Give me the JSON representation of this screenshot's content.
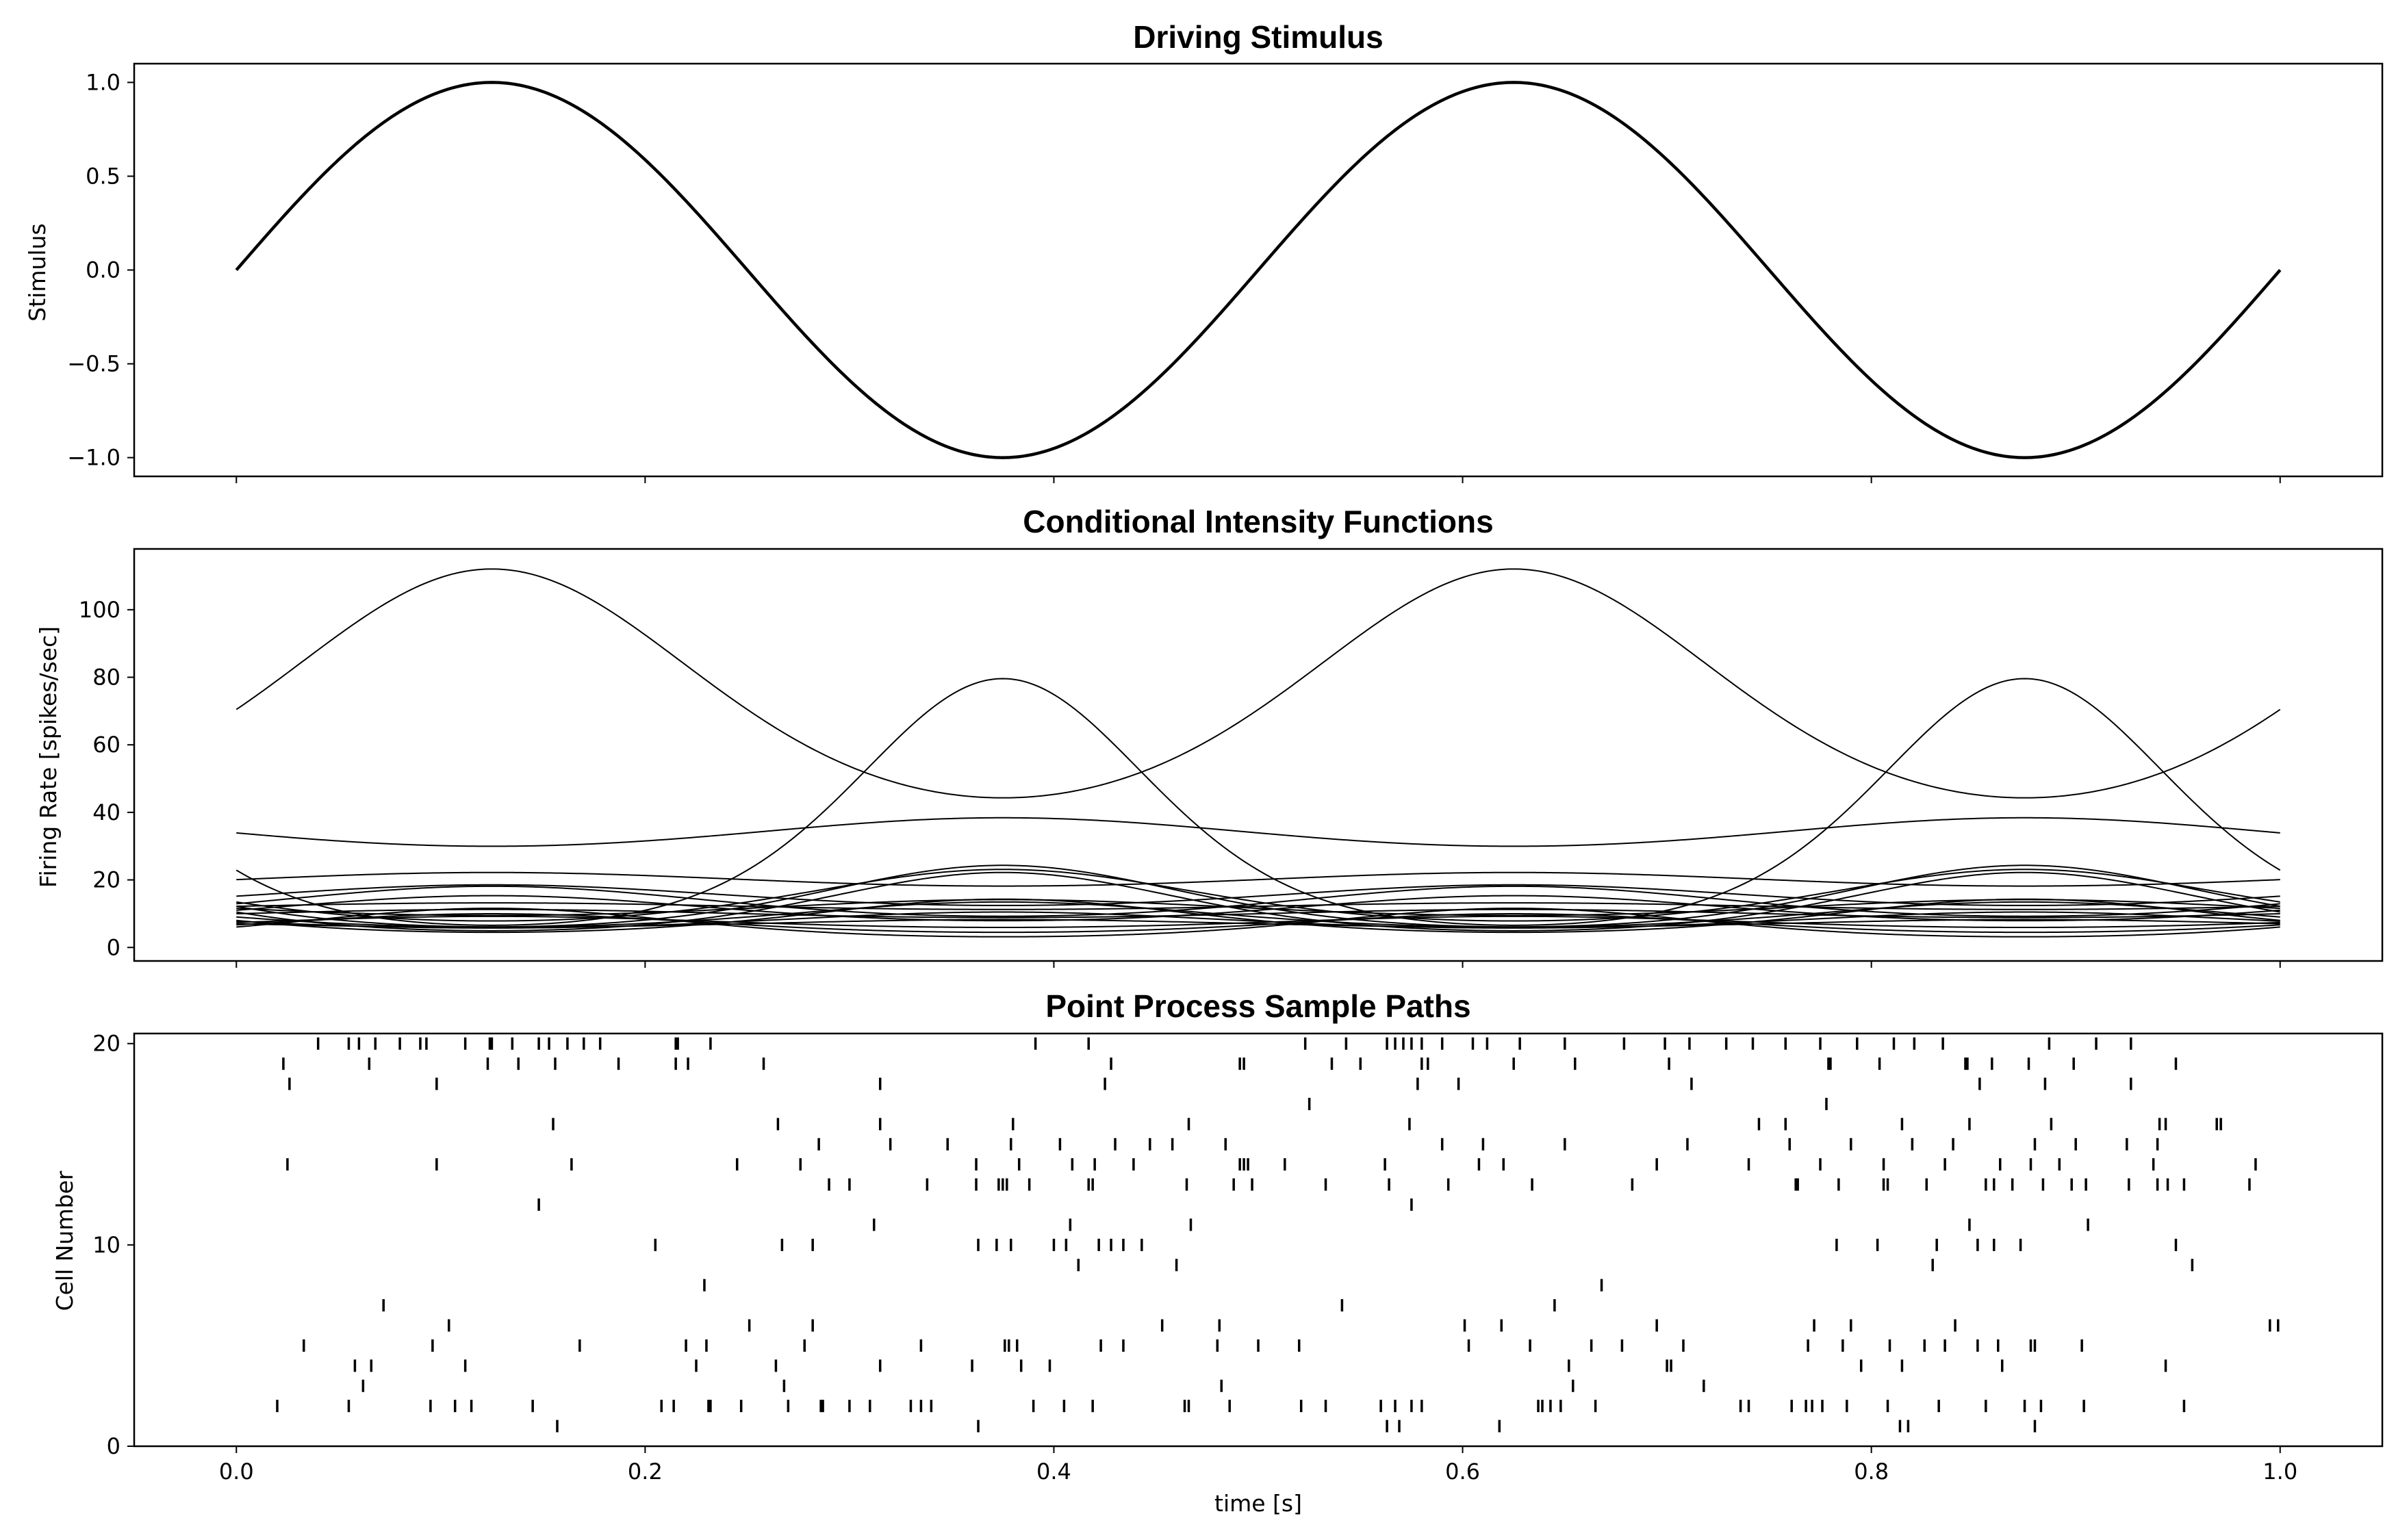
{
  "chart_data": [
    {
      "type": "line",
      "title": "Driving Stimulus",
      "xlabel": "",
      "ylabel": "Stimulus",
      "xlim": [
        -0.05,
        1.05
      ],
      "ylim": [
        -1.1,
        1.1
      ],
      "xticks": [
        0.0,
        0.2,
        0.4,
        0.6,
        0.8,
        1.0
      ],
      "yticks": [
        -1.0,
        -0.5,
        0.0,
        0.5,
        1.0
      ],
      "ytick_labels": [
        "−1.0",
        "−0.5",
        "0.0",
        "0.5",
        "1.0"
      ],
      "grid": false,
      "color": "#000000",
      "series": [
        {
          "function": "sin(2*pi*2*t)",
          "t_range": [
            0,
            1
          ],
          "amplitude": 1.0,
          "frequency_hz": 2
        }
      ]
    },
    {
      "type": "line",
      "title": "Conditional Intensity Functions",
      "xlabel": "",
      "ylabel": "Firing Rate [spikes/sec]",
      "xlim": [
        -0.05,
        1.05
      ],
      "ylim": [
        -4,
        118
      ],
      "xticks": [
        0.0,
        0.2,
        0.4,
        0.6,
        0.8,
        1.0
      ],
      "yticks": [
        0,
        20,
        40,
        60,
        80,
        100
      ],
      "ytick_labels": [
        "0",
        "20",
        "40",
        "60",
        "80",
        "100"
      ],
      "grid": false,
      "color": "#000000",
      "model": "rate = exp(base + gain * sin(2*pi*2*t))",
      "series": [
        {
          "base": 4.255,
          "gain": 0.464
        },
        {
          "base": 3.13,
          "gain": -1.247
        },
        {
          "base": 3.524,
          "gain": -0.124
        },
        {
          "base": 2.5,
          "gain": -0.691
        },
        {
          "base": 2.56,
          "gain": 0.337
        },
        {
          "base": 2.6,
          "gain": -0.54
        },
        {
          "base": 2.35,
          "gain": -0.75
        },
        {
          "base": 2.72,
          "gain": 0.2
        },
        {
          "base": 2.4,
          "gain": 0.33
        },
        {
          "base": 2.2,
          "gain": -0.4
        },
        {
          "base": 2.5,
          "gain": 0.08
        },
        {
          "base": 2.08,
          "gain": -0.58
        },
        {
          "base": 1.9,
          "gain": 0.4
        },
        {
          "base": 2.3,
          "gain": 0.12
        },
        {
          "base": 2.05,
          "gain": -0.3
        },
        {
          "base": 1.8,
          "gain": 0.65
        },
        {
          "base": 2.45,
          "gain": -0.2
        },
        {
          "base": 2.0,
          "gain": 0.22
        },
        {
          "base": 1.95,
          "gain": -0.16
        },
        {
          "base": 3.0,
          "gain": 0.1
        }
      ]
    },
    {
      "type": "scatter",
      "title": "Point Process Sample Paths",
      "xlabel": "time [s]",
      "ylabel": "Cell Number",
      "xlim": [
        -0.05,
        1.05
      ],
      "ylim": [
        0,
        20.5
      ],
      "xticks": [
        0.0,
        0.2,
        0.4,
        0.6,
        0.8,
        1.0
      ],
      "xtick_labels": [
        "0.0",
        "0.2",
        "0.4",
        "0.6",
        "0.8",
        "1.0"
      ],
      "yticks": [
        0,
        10,
        20
      ],
      "ytick_labels": [
        "0",
        "10",
        "20"
      ],
      "grid": false,
      "marker": "|",
      "color": "#000000",
      "spikes": [
        {
          "cell": 1,
          "t": [
            0.157,
            0.363,
            0.563,
            0.569,
            0.618,
            0.814,
            0.818,
            0.88
          ]
        },
        {
          "cell": 2,
          "t": [
            0.02,
            0.055,
            0.095,
            0.107,
            0.115,
            0.145,
            0.208,
            0.214,
            0.231,
            0.232,
            0.247,
            0.27,
            0.286,
            0.287,
            0.3,
            0.31,
            0.33,
            0.335,
            0.34,
            0.39,
            0.405,
            0.419,
            0.464,
            0.466,
            0.486,
            0.521,
            0.533,
            0.56,
            0.567,
            0.575,
            0.58,
            0.637,
            0.639,
            0.643,
            0.648,
            0.665,
            0.736,
            0.74,
            0.761,
            0.768,
            0.771,
            0.776,
            0.788,
            0.808,
            0.833,
            0.856,
            0.875,
            0.883,
            0.904,
            0.953
          ]
        },
        {
          "cell": 3,
          "t": [
            0.062,
            0.268,
            0.482,
            0.654,
            0.718
          ]
        },
        {
          "cell": 4,
          "t": [
            0.058,
            0.066,
            0.112,
            0.225,
            0.264,
            0.315,
            0.36,
            0.384,
            0.398,
            0.652,
            0.7,
            0.702,
            0.795,
            0.815,
            0.864,
            0.944
          ]
        },
        {
          "cell": 5,
          "t": [
            0.033,
            0.096,
            0.168,
            0.22,
            0.23,
            0.278,
            0.335,
            0.376,
            0.378,
            0.382,
            0.423,
            0.434,
            0.48,
            0.5,
            0.52,
            0.603,
            0.633,
            0.663,
            0.678,
            0.708,
            0.769,
            0.786,
            0.809,
            0.826,
            0.836,
            0.852,
            0.862,
            0.878,
            0.88,
            0.903
          ]
        },
        {
          "cell": 6,
          "t": [
            0.104,
            0.251,
            0.282,
            0.453,
            0.481,
            0.601,
            0.619,
            0.695,
            0.772,
            0.79,
            0.841,
            0.995,
            0.999
          ]
        },
        {
          "cell": 7,
          "t": [
            0.072,
            0.541,
            0.645
          ]
        },
        {
          "cell": 8,
          "t": [
            0.229,
            0.668
          ]
        },
        {
          "cell": 9,
          "t": [
            0.412,
            0.46,
            0.83,
            0.957
          ]
        },
        {
          "cell": 10,
          "t": [
            0.205,
            0.267,
            0.282,
            0.363,
            0.372,
            0.379,
            0.4,
            0.406,
            0.422,
            0.428,
            0.434,
            0.443,
            0.783,
            0.803,
            0.832,
            0.852,
            0.86,
            0.873,
            0.949
          ]
        },
        {
          "cell": 11,
          "t": [
            0.312,
            0.408,
            0.467,
            0.848,
            0.906
          ]
        },
        {
          "cell": 12,
          "t": [
            0.148,
            0.575
          ]
        },
        {
          "cell": 13,
          "t": [
            0.29,
            0.3,
            0.338,
            0.362,
            0.373,
            0.375,
            0.377,
            0.388,
            0.417,
            0.419,
            0.465,
            0.488,
            0.497,
            0.533,
            0.564,
            0.593,
            0.634,
            0.683,
            0.763,
            0.764,
            0.784,
            0.806,
            0.808,
            0.827,
            0.856,
            0.86,
            0.869,
            0.884,
            0.898,
            0.905,
            0.926,
            0.94,
            0.945,
            0.953,
            0.985
          ]
        },
        {
          "cell": 14,
          "t": [
            0.025,
            0.098,
            0.164,
            0.245,
            0.276,
            0.362,
            0.383,
            0.409,
            0.42,
            0.439,
            0.491,
            0.493,
            0.495,
            0.513,
            0.562,
            0.608,
            0.62,
            0.695,
            0.74,
            0.775,
            0.806,
            0.836,
            0.863,
            0.878,
            0.892,
            0.938,
            0.988
          ]
        },
        {
          "cell": 15,
          "t": [
            0.285,
            0.32,
            0.348,
            0.379,
            0.403,
            0.43,
            0.447,
            0.458,
            0.484,
            0.59,
            0.61,
            0.65,
            0.71,
            0.76,
            0.79,
            0.82,
            0.84,
            0.88,
            0.9,
            0.925,
            0.94
          ]
        },
        {
          "cell": 16,
          "t": [
            0.155,
            0.265,
            0.315,
            0.38,
            0.466,
            0.574,
            0.745,
            0.758,
            0.815,
            0.848,
            0.888,
            0.941,
            0.944,
            0.969,
            0.971
          ]
        },
        {
          "cell": 17,
          "t": [
            0.525,
            0.778
          ]
        },
        {
          "cell": 18,
          "t": [
            0.026,
            0.098,
            0.315,
            0.425,
            0.578,
            0.598,
            0.712,
            0.853,
            0.885,
            0.927
          ]
        },
        {
          "cell": 19,
          "t": [
            0.023,
            0.065,
            0.123,
            0.138,
            0.156,
            0.187,
            0.215,
            0.221,
            0.258,
            0.428,
            0.491,
            0.493,
            0.536,
            0.55,
            0.58,
            0.583,
            0.625,
            0.655,
            0.701,
            0.779,
            0.78,
            0.804,
            0.846,
            0.847,
            0.859,
            0.877,
            0.899,
            0.949
          ]
        },
        {
          "cell": 20,
          "t": [
            0.04,
            0.055,
            0.06,
            0.068,
            0.08,
            0.09,
            0.093,
            0.112,
            0.124,
            0.125,
            0.135,
            0.148,
            0.153,
            0.162,
            0.17,
            0.178,
            0.215,
            0.216,
            0.232,
            0.391,
            0.417,
            0.523,
            0.543,
            0.563,
            0.567,
            0.571,
            0.575,
            0.58,
            0.59,
            0.605,
            0.612,
            0.628,
            0.65,
            0.679,
            0.699,
            0.711,
            0.729,
            0.742,
            0.758,
            0.775,
            0.793,
            0.811,
            0.821,
            0.835,
            0.887,
            0.91,
            0.927
          ]
        }
      ]
    }
  ]
}
